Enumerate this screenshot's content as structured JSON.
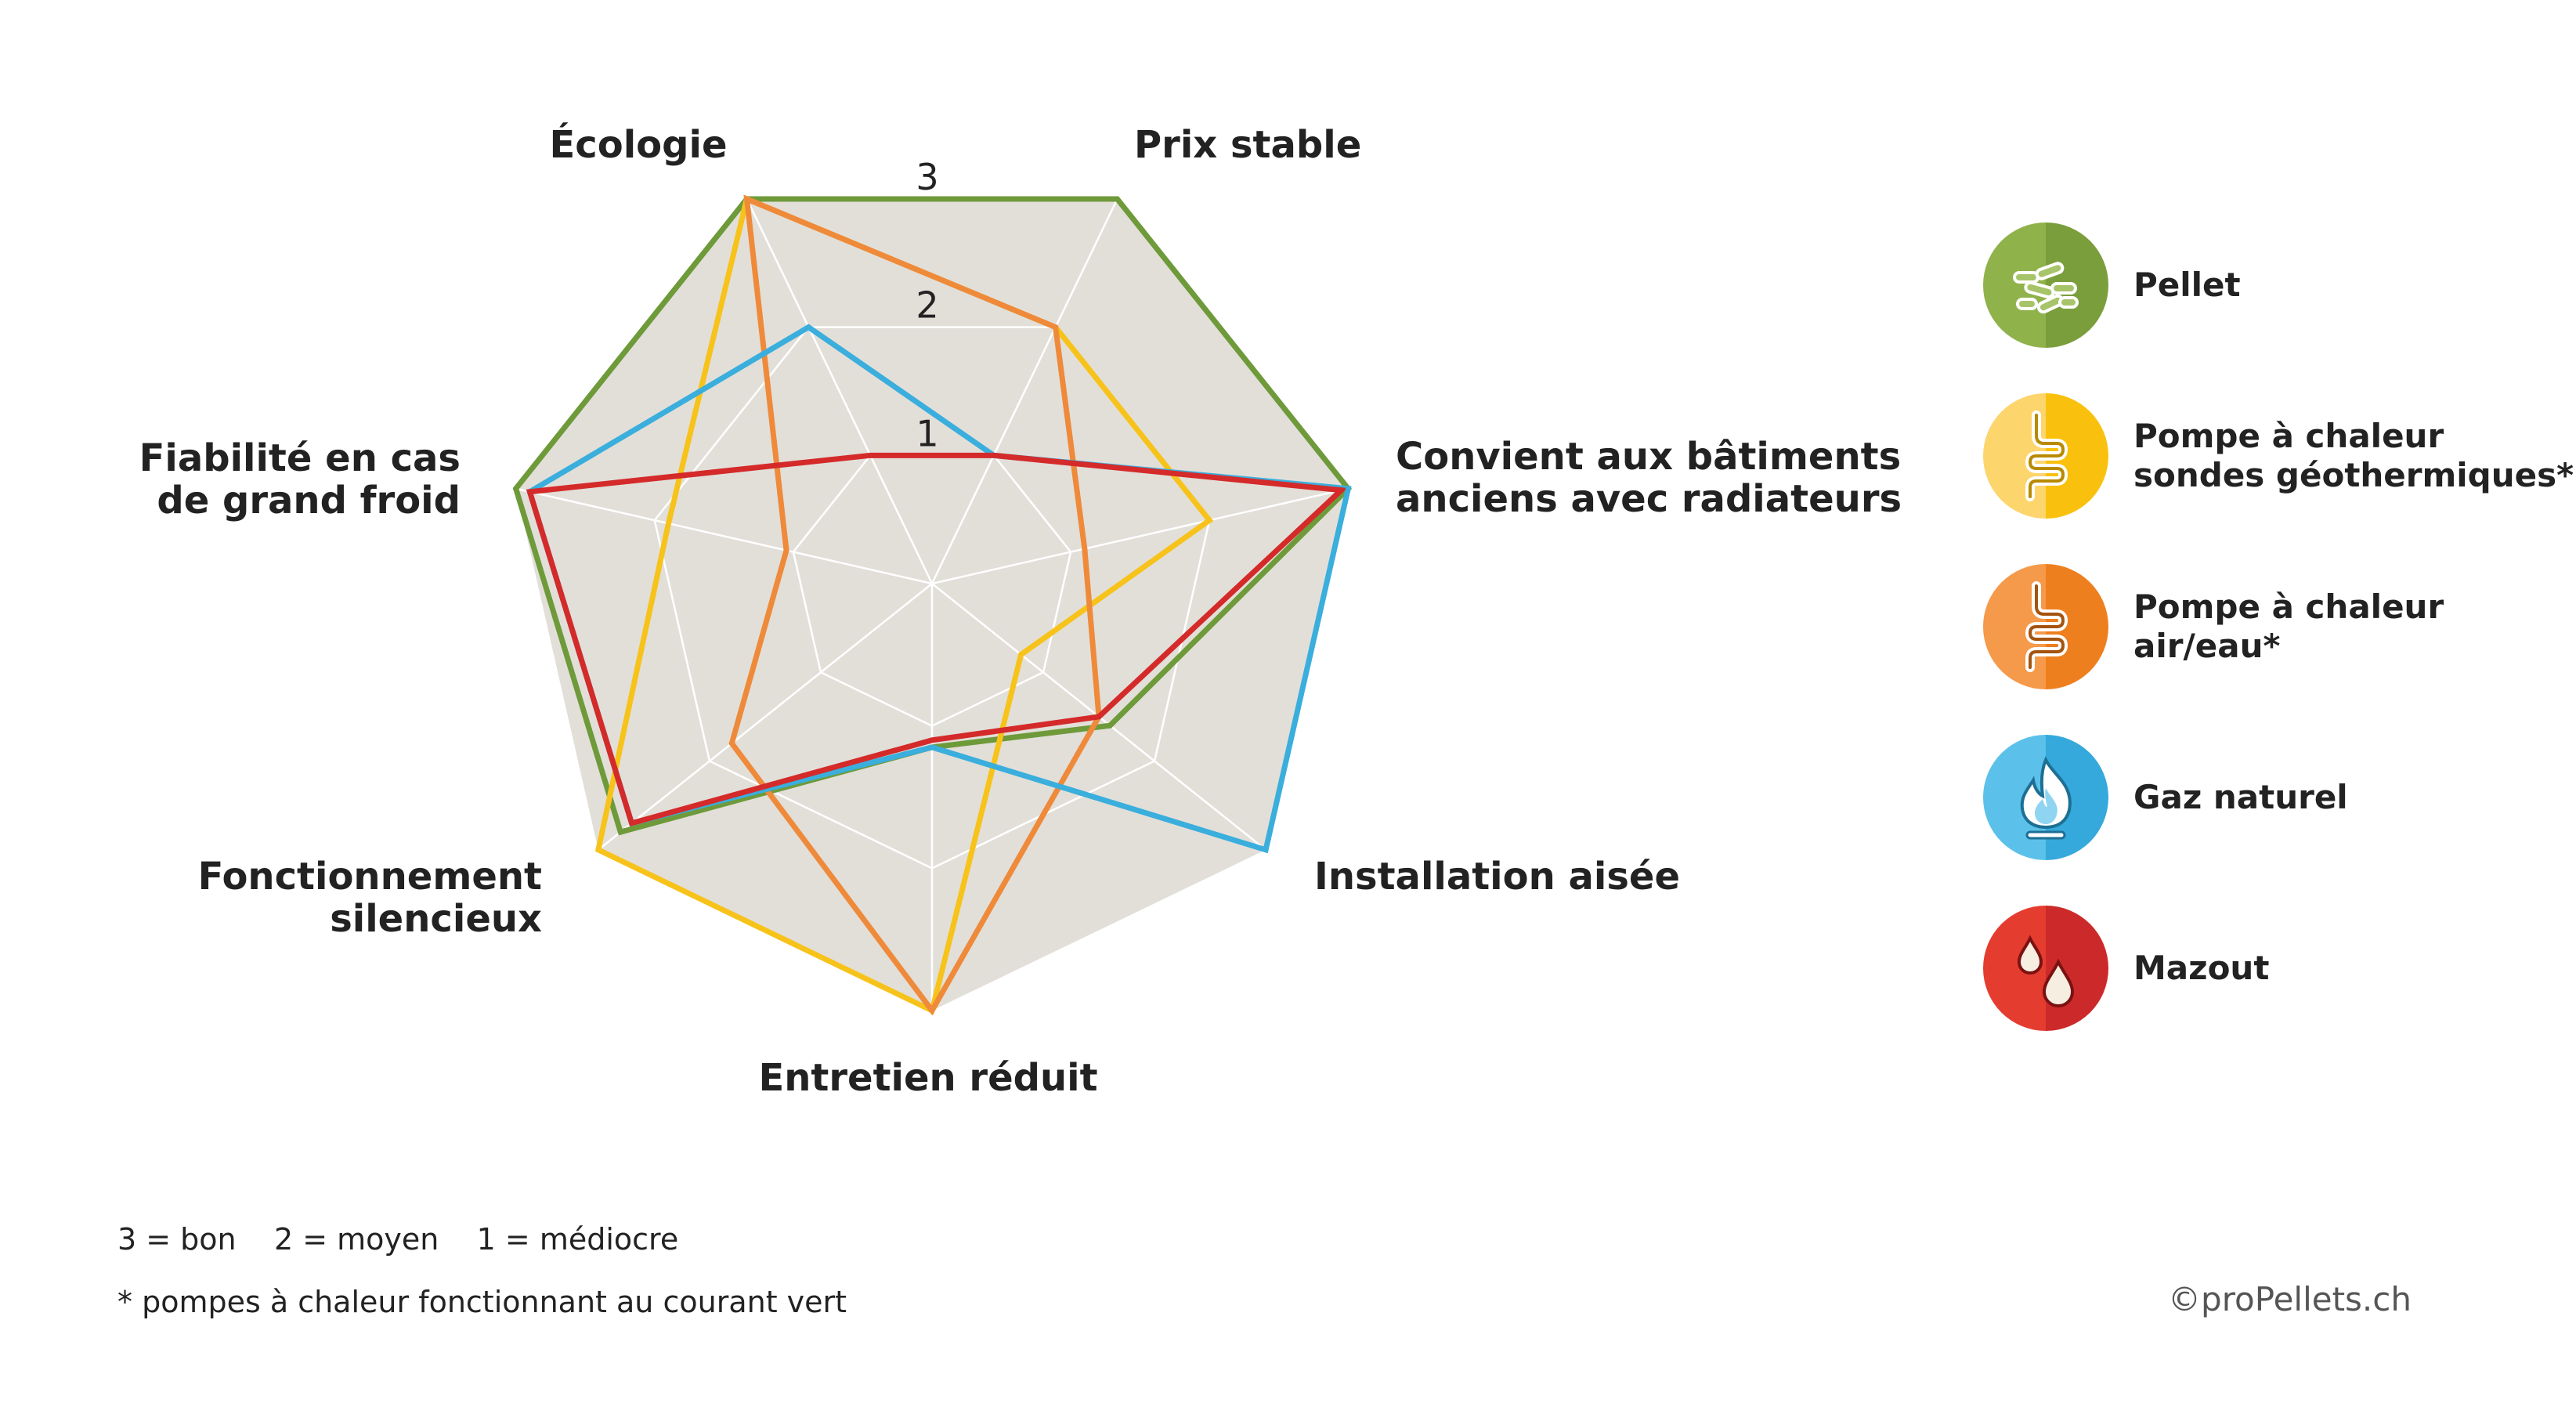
{
  "chart_data": {
    "type": "radar",
    "axes": [
      "Écologie",
      "Prix stable",
      "Convient aux bâtiments\nanciens avec radiateurs",
      "Installation aisée",
      "Entretien réduit",
      "Fonctionnement\nsilencieux",
      "Fiabilité en cas\nde grand froid"
    ],
    "ticks": [
      "1",
      "2",
      "3"
    ],
    "range": [
      0,
      3
    ],
    "grid": true,
    "legend_position": "right",
    "series": [
      {
        "name": "Pellet",
        "color": "#6e9a3a",
        "icon": "pellet-icon",
        "values": [
          3,
          3,
          3,
          1.6,
          1.15,
          2.8,
          3
        ]
      },
      {
        "name": "Pompe à chaleur\nsondes géothermiques*",
        "color": "#f7c31b",
        "icon": "coil-icon",
        "values": [
          3,
          2,
          2,
          0.8,
          3,
          3,
          1.9
        ]
      },
      {
        "name": "Pompe à chaleur\nair/eau*",
        "color": "#ee8a3a",
        "icon": "coil-icon",
        "values": [
          3,
          2,
          1.1,
          1.5,
          3,
          1.8,
          1.05
        ]
      },
      {
        "name": "Gaz naturel",
        "color": "#3aaedc",
        "icon": "flame-icon",
        "values": [
          2,
          1,
          3,
          3,
          1.15,
          2.7,
          2.9
        ]
      },
      {
        "name": "Mazout",
        "color": "#d42a2a",
        "icon": "drops-icon",
        "values": [
          1,
          1,
          2.95,
          1.5,
          1.1,
          2.7,
          2.9
        ]
      }
    ]
  },
  "legend_colors": {
    "Pellet": [
      "#8fb24a",
      "#7a9e3c"
    ],
    "Geo": [
      "#fdd56d",
      "#f9c10e"
    ],
    "Air": [
      "#f5994a",
      "#ee7f1e"
    ],
    "Gaz": [
      "#5cc1ea",
      "#35a9db"
    ],
    "Mazout": [
      "#e53c30",
      "#cc2a2a"
    ]
  },
  "footnotes": {
    "scale": "3 = bon    2 = moyen    1 = médiocre",
    "note": "* pompes à chaleur fonctionnant au courant vert",
    "copyright": "©proPellets.ch"
  }
}
